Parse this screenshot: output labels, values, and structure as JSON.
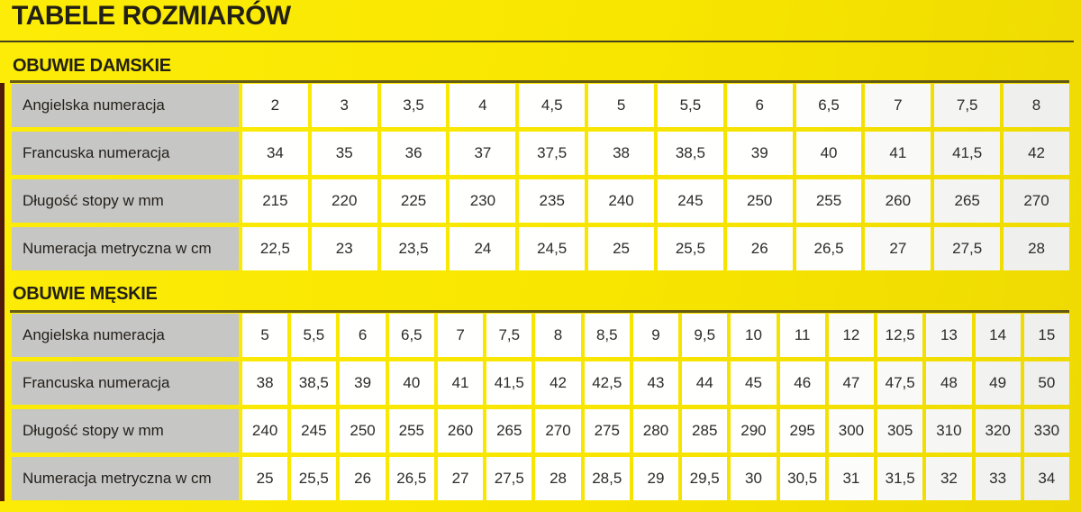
{
  "header": {
    "title": "TABELE ROZMIARÓW"
  },
  "chart_data": [
    {
      "type": "table",
      "title": "OBUWIE DAMSKIE",
      "row_headers": [
        "Angielska numeracja",
        "Francuska numeracja",
        "Długość stopy w mm",
        "Numeracja metryczna w cm"
      ],
      "rows": [
        [
          "2",
          "3",
          "3,5",
          "4",
          "4,5",
          "5",
          "5,5",
          "6",
          "6,5",
          "7",
          "7,5",
          "8"
        ],
        [
          "34",
          "35",
          "36",
          "37",
          "37,5",
          "38",
          "38,5",
          "39",
          "40",
          "41",
          "41,5",
          "42"
        ],
        [
          "215",
          "220",
          "225",
          "230",
          "235",
          "240",
          "245",
          "250",
          "255",
          "260",
          "265",
          "270"
        ],
        [
          "22,5",
          "23",
          "23,5",
          "24",
          "24,5",
          "25",
          "25,5",
          "26",
          "26,5",
          "27",
          "27,5",
          "28"
        ]
      ]
    },
    {
      "type": "table",
      "title": "OBUWIE MĘSKIE",
      "row_headers": [
        "Angielska numeracja",
        "Francuska numeracja",
        "Długość stopy w mm",
        "Numeracja metryczna w cm"
      ],
      "rows": [
        [
          "5",
          "5,5",
          "6",
          "6,5",
          "7",
          "7,5",
          "8",
          "8,5",
          "9",
          "9,5",
          "10",
          "11",
          "12",
          "12,5",
          "13",
          "14",
          "15"
        ],
        [
          "38",
          "38,5",
          "39",
          "40",
          "41",
          "41,5",
          "42",
          "42,5",
          "43",
          "44",
          "45",
          "46",
          "47",
          "47,5",
          "48",
          "49",
          "50"
        ],
        [
          "240",
          "245",
          "250",
          "255",
          "260",
          "265",
          "270",
          "275",
          "280",
          "285",
          "290",
          "295",
          "300",
          "305",
          "310",
          "320",
          "330"
        ],
        [
          "25",
          "25,5",
          "26",
          "26,5",
          "27",
          "27,5",
          "28",
          "28,5",
          "29",
          "29,5",
          "30",
          "30,5",
          "31",
          "31,5",
          "32",
          "33",
          "34"
        ]
      ]
    }
  ],
  "colors": {
    "background_yellow": "#f8e600",
    "label_cell_gray": "#c6c6c5",
    "data_cell_white": "#ffffff",
    "text_dark": "#24211b",
    "title_rule_olive": "#45411c",
    "left_edge_maroon": "#511b0b"
  }
}
